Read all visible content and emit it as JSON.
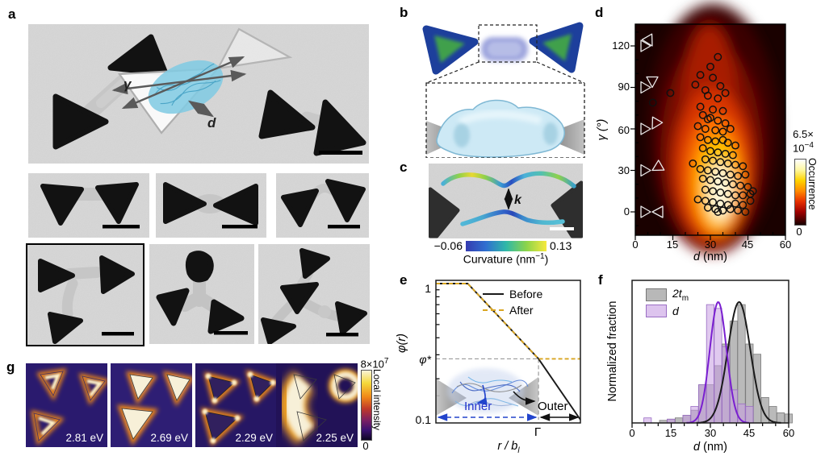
{
  "panels": {
    "a": {
      "label": "a",
      "gamma_label": "γ",
      "d_label": "d"
    },
    "b": {
      "label": "b"
    },
    "c": {
      "label": "c",
      "k_label": "k",
      "cbar_min": "−0.06",
      "cbar_max": "0.13",
      "cbar_title_main": "Curvature (nm",
      "cbar_title_sup": "−1",
      "cbar_title_end": ")"
    },
    "d": {
      "label": "d",
      "ylabel": "γ (°)",
      "xlabel_main": "d",
      "xlabel_unit": " (nm)",
      "y_ticks": [
        "120",
        "90",
        "60",
        "30",
        "0"
      ],
      "x_ticks": [
        "0",
        "15",
        "30",
        "45",
        "60"
      ],
      "cbar_top_1": "6.5×",
      "cbar_top_2": "10",
      "cbar_top_sup": "−4",
      "cbar_label": "Occurrence",
      "cbar_bottom": "0"
    },
    "e": {
      "label": "e",
      "ylabel": "φ(r)",
      "ytick_top": "1",
      "ytick_bottom": "0.1",
      "phi_star": "φ*",
      "legend": [
        {
          "name": "Before"
        },
        {
          "name": "After"
        }
      ],
      "inner_label": "Inner",
      "outer_label": "Outer",
      "gamma_symbol": "Γ",
      "xlabel_main": "r / b",
      "xlabel_sub": "l"
    },
    "f": {
      "label": "f",
      "ylabel": "Normalized fraction",
      "xlabel_main": "d",
      "xlabel_unit": " (nm)",
      "x_ticks": [
        "0",
        "15",
        "30",
        "45",
        "60"
      ],
      "legend_1_main": "2t",
      "legend_1_sub": "m",
      "legend_2": "d"
    },
    "g": {
      "label": "g",
      "tiles": [
        {
          "energy": "2.81 eV"
        },
        {
          "energy": "2.69 eV"
        },
        {
          "energy": "2.29 eV"
        },
        {
          "energy": "2.25 eV"
        }
      ],
      "cbar_top_main": "8×10",
      "cbar_top_sup": "7",
      "cbar_label": "Local intensity",
      "cbar_bottom": "0"
    }
  },
  "colors": {
    "tem_bg": "#d6d6d6",
    "particle": "#111111",
    "polymer_blue": "#82cbe3",
    "heat_white": "#fff8dc",
    "heat_yellow": "#ffc400",
    "heat_orange": "#ff7300",
    "heat_red": "#d83400",
    "heat_dark": "#2a0300",
    "after_gold": "#d9a521",
    "hist_gray": "#a0a0a0",
    "hist_purple": "#c69ce2",
    "curve_purple": "#7a1fd0",
    "g_bg_indigo": "#2a1a6e",
    "g_glow_cream": "#f7f0d8",
    "g_glow_orange": "#f08818"
  },
  "chart_data": [
    {
      "id": "gamma_d_map",
      "type": "heatmap",
      "xlabel": "d (nm)",
      "ylabel": "γ (°)",
      "xlim": [
        0,
        60
      ],
      "ylim": [
        -17,
        136
      ],
      "x_ticks": [
        0,
        15,
        30,
        45,
        60
      ],
      "y_ticks": [
        0,
        30,
        60,
        90,
        120
      ],
      "colorbar": {
        "max_label": "6.5×10−4",
        "min_label": "0",
        "title": "Occurrence"
      },
      "hotspot": {
        "d": 35,
        "gamma": 22
      },
      "points": [
        [
          33,
          112
        ],
        [
          30,
          105
        ],
        [
          26,
          99
        ],
        [
          31,
          97
        ],
        [
          24,
          92
        ],
        [
          34,
          91
        ],
        [
          28,
          88
        ],
        [
          36,
          86
        ],
        [
          14,
          86
        ],
        [
          29,
          84
        ],
        [
          33,
          82
        ],
        [
          7,
          79
        ],
        [
          26,
          76
        ],
        [
          31,
          74
        ],
        [
          35,
          73
        ],
        [
          27,
          70
        ],
        [
          30,
          68
        ],
        [
          29,
          67
        ],
        [
          33,
          66
        ],
        [
          36,
          64
        ],
        [
          25,
          62
        ],
        [
          28,
          60
        ],
        [
          32,
          59
        ],
        [
          35,
          58
        ],
        [
          38,
          60
        ],
        [
          26,
          54
        ],
        [
          29,
          52
        ],
        [
          32,
          51
        ],
        [
          35,
          52
        ],
        [
          37,
          50
        ],
        [
          40,
          48
        ],
        [
          27,
          46
        ],
        [
          30,
          44
        ],
        [
          33,
          43
        ],
        [
          36,
          42
        ],
        [
          39,
          41
        ],
        [
          28,
          38
        ],
        [
          31,
          37
        ],
        [
          34,
          36
        ],
        [
          37,
          35
        ],
        [
          40,
          34
        ],
        [
          43,
          33
        ],
        [
          26,
          31
        ],
        [
          29,
          30
        ],
        [
          32,
          29
        ],
        [
          35,
          28
        ],
        [
          38,
          27
        ],
        [
          41,
          26
        ],
        [
          44,
          27
        ],
        [
          27,
          24
        ],
        [
          30,
          23
        ],
        [
          33,
          22
        ],
        [
          36,
          21
        ],
        [
          39,
          20
        ],
        [
          42,
          19
        ],
        [
          45,
          18
        ],
        [
          28,
          16
        ],
        [
          31,
          15
        ],
        [
          34,
          14
        ],
        [
          37,
          13
        ],
        [
          40,
          12
        ],
        [
          43,
          12
        ],
        [
          46,
          13
        ],
        [
          25,
          9
        ],
        [
          28,
          8
        ],
        [
          31,
          7
        ],
        [
          34,
          6
        ],
        [
          37,
          5
        ],
        [
          40,
          6
        ],
        [
          43,
          5
        ],
        [
          46,
          8
        ],
        [
          29,
          3
        ],
        [
          32,
          2
        ],
        [
          35,
          1
        ],
        [
          38,
          2
        ],
        [
          41,
          1
        ],
        [
          33,
          0
        ],
        [
          44,
          0
        ],
        [
          47,
          15
        ],
        [
          23,
          35
        ]
      ]
    },
    {
      "id": "phi_profile",
      "type": "line",
      "xlabel": "r / b_l",
      "ylabel": "φ(r)",
      "yscale": "log",
      "ylim": [
        0.1,
        1
      ],
      "phi_star": 0.28,
      "Gamma_x": 0.71,
      "series": [
        {
          "name": "Before",
          "color": "#1a1a1a",
          "style": "solid",
          "points": [
            [
              0,
              1
            ],
            [
              0.22,
              1
            ],
            [
              0.71,
              0.28
            ],
            [
              1.0,
              0.1
            ]
          ]
        },
        {
          "name": "After",
          "color": "#d9a521",
          "style": "dashed",
          "points": [
            [
              0,
              1
            ],
            [
              0.22,
              1
            ],
            [
              0.71,
              0.28
            ],
            [
              1.0,
              0.28
            ]
          ]
        }
      ]
    },
    {
      "id": "d_histograms",
      "type": "bar",
      "xlabel": "d (nm)",
      "ylabel": "Normalized fraction",
      "xlim": [
        0,
        60
      ],
      "x_ticks": [
        0,
        15,
        30,
        45,
        60
      ],
      "bin_width": 3,
      "series": [
        {
          "key": "tm",
          "name": "2t_m",
          "color": "#a0a0a0",
          "bins": [
            [
              10.5,
              0.02
            ],
            [
              13.5,
              0.03
            ],
            [
              16.5,
              0.04
            ],
            [
              19.5,
              0.06
            ],
            [
              22.5,
              0.1
            ],
            [
              25.5,
              0.3
            ],
            [
              28.5,
              0.3
            ],
            [
              31.5,
              0.45
            ],
            [
              34.5,
              0.62
            ],
            [
              37.5,
              0.8
            ],
            [
              40.5,
              0.93
            ],
            [
              43.5,
              0.62
            ],
            [
              46.5,
              0.54
            ],
            [
              49.5,
              0.2
            ],
            [
              52.5,
              0.13
            ],
            [
              55.5,
              0.08
            ],
            [
              58.5,
              0.07
            ]
          ]
        },
        {
          "key": "d",
          "name": "d",
          "color": "#c69ce2",
          "bins": [
            [
              4.5,
              0.04
            ],
            [
              13.5,
              0.03
            ],
            [
              19.5,
              0.06
            ],
            [
              22.5,
              0.13
            ],
            [
              25.5,
              0.3
            ],
            [
              28.5,
              0.93
            ],
            [
              31.5,
              0.9
            ],
            [
              34.5,
              0.6
            ],
            [
              37.5,
              0.26
            ],
            [
              40.5,
              0.15
            ],
            [
              43.5,
              0.13
            ]
          ]
        }
      ],
      "curves": [
        {
          "key": "tm",
          "color": "#1a1a1a",
          "mu": 41,
          "sigma": 4.3,
          "amp": 0.95
        },
        {
          "key": "d",
          "color": "#7a1fd0",
          "mu": 33,
          "sigma": 3.2,
          "amp": 0.95
        }
      ]
    }
  ]
}
